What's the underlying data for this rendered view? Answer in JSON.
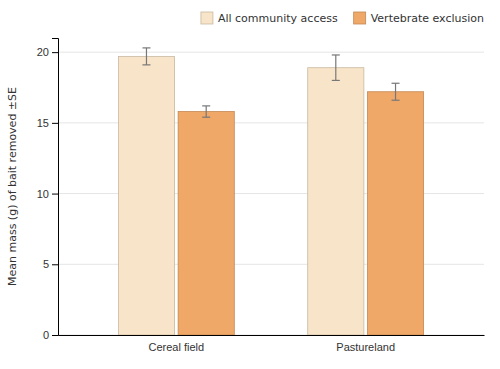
{
  "chart_data": {
    "type": "bar",
    "categories": [
      "Cereal field",
      "Pastureland"
    ],
    "series": [
      {
        "name": "All community access",
        "color": "#F8E4C8",
        "values": [
          19.7,
          18.9
        ],
        "errors": [
          0.6,
          0.9
        ]
      },
      {
        "name": "Vertebrate exclusion",
        "color": "#F0A868",
        "values": [
          15.8,
          17.2
        ],
        "errors": [
          0.4,
          0.6
        ]
      }
    ],
    "ylabel": "Mean mass (g) of bait removed ±SE",
    "ylim": [
      0,
      21
    ],
    "yticks": [
      0,
      5,
      10,
      15,
      20
    ],
    "grid": true,
    "legend": "upper right"
  }
}
